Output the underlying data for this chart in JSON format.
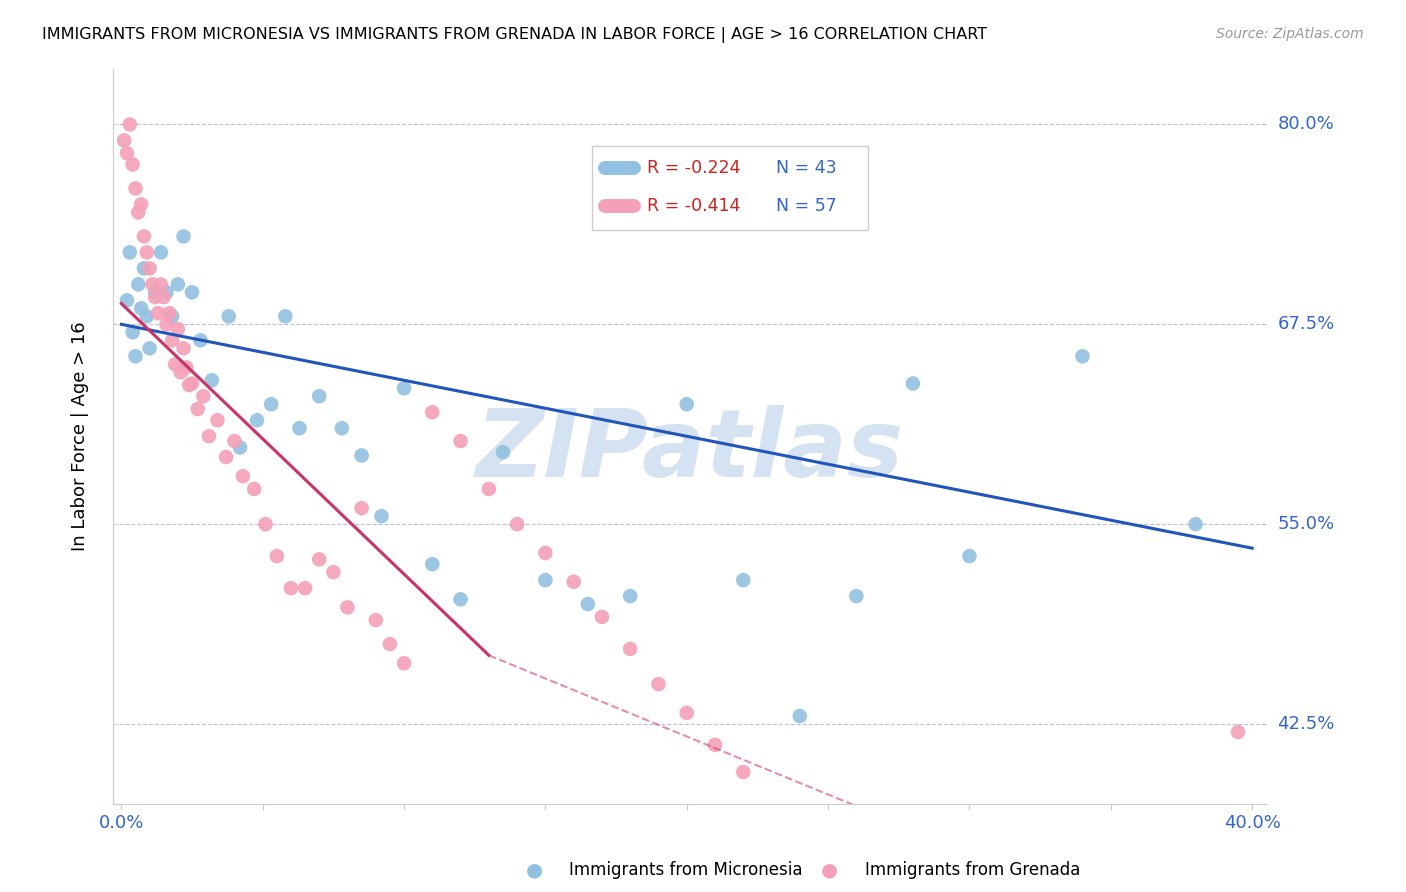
{
  "title": "IMMIGRANTS FROM MICRONESIA VS IMMIGRANTS FROM GRENADA IN LABOR FORCE | AGE > 16 CORRELATION CHART",
  "source": "Source: ZipAtlas.com",
  "ylabel": "In Labor Force | Age > 16",
  "xlim": [
    -0.003,
    0.405
  ],
  "ylim": [
    0.375,
    0.835
  ],
  "ytick_positions": [
    0.8,
    0.675,
    0.55,
    0.425
  ],
  "ytick_labels": [
    "80.0%",
    "67.5%",
    "55.0%",
    "42.5%"
  ],
  "xtick_positions": [
    0.0,
    0.05,
    0.1,
    0.15,
    0.2,
    0.25,
    0.3,
    0.35,
    0.4
  ],
  "xtick_labels": [
    "0.0%",
    "",
    "",
    "",
    "",
    "",
    "",
    "",
    "40.0%"
  ],
  "micronesia_color": "#92c0e0",
  "grenada_color": "#f4a0b8",
  "micronesia_line_color": "#2255bb",
  "grenada_line_solid_color": "#cc3366",
  "grenada_line_dashed_color": "#cc3366",
  "watermark": "ZIPatlas",
  "watermark_color": "#b8d0e8",
  "legend_R_micronesia": "R = -0.224",
  "legend_N_micronesia": "N = 43",
  "legend_R_grenada": "R = -0.414",
  "legend_N_grenada": "N = 57",
  "R_color": "#cc2222",
  "N_color": "#3366cc",
  "micronesia_x": [
    0.002,
    0.003,
    0.004,
    0.005,
    0.006,
    0.007,
    0.008,
    0.009,
    0.01,
    0.012,
    0.014,
    0.016,
    0.018,
    0.02,
    0.022,
    0.025,
    0.028,
    0.032,
    0.038,
    0.042,
    0.048,
    0.053,
    0.058,
    0.063,
    0.07,
    0.078,
    0.085,
    0.092,
    0.1,
    0.11,
    0.12,
    0.135,
    0.15,
    0.165,
    0.18,
    0.2,
    0.22,
    0.24,
    0.26,
    0.28,
    0.3,
    0.34,
    0.38
  ],
  "micronesia_y": [
    0.69,
    0.72,
    0.67,
    0.655,
    0.7,
    0.685,
    0.71,
    0.68,
    0.66,
    0.695,
    0.72,
    0.695,
    0.68,
    0.7,
    0.73,
    0.695,
    0.665,
    0.64,
    0.68,
    0.598,
    0.615,
    0.625,
    0.68,
    0.61,
    0.63,
    0.61,
    0.593,
    0.555,
    0.635,
    0.525,
    0.503,
    0.595,
    0.515,
    0.5,
    0.505,
    0.625,
    0.515,
    0.43,
    0.505,
    0.638,
    0.53,
    0.655,
    0.55
  ],
  "grenada_x": [
    0.001,
    0.002,
    0.003,
    0.004,
    0.005,
    0.006,
    0.007,
    0.008,
    0.009,
    0.01,
    0.011,
    0.012,
    0.013,
    0.014,
    0.015,
    0.016,
    0.017,
    0.018,
    0.019,
    0.02,
    0.021,
    0.022,
    0.023,
    0.024,
    0.025,
    0.027,
    0.029,
    0.031,
    0.034,
    0.037,
    0.04,
    0.043,
    0.047,
    0.051,
    0.055,
    0.06,
    0.065,
    0.07,
    0.075,
    0.08,
    0.085,
    0.09,
    0.095,
    0.1,
    0.11,
    0.12,
    0.13,
    0.14,
    0.15,
    0.16,
    0.17,
    0.18,
    0.19,
    0.2,
    0.21,
    0.22,
    0.395
  ],
  "grenada_y": [
    0.79,
    0.782,
    0.8,
    0.775,
    0.76,
    0.745,
    0.75,
    0.73,
    0.72,
    0.71,
    0.7,
    0.692,
    0.682,
    0.7,
    0.692,
    0.675,
    0.682,
    0.665,
    0.65,
    0.672,
    0.645,
    0.66,
    0.648,
    0.637,
    0.638,
    0.622,
    0.63,
    0.605,
    0.615,
    0.592,
    0.602,
    0.58,
    0.572,
    0.55,
    0.53,
    0.51,
    0.51,
    0.528,
    0.52,
    0.498,
    0.56,
    0.49,
    0.475,
    0.463,
    0.62,
    0.602,
    0.572,
    0.55,
    0.532,
    0.514,
    0.492,
    0.472,
    0.45,
    0.432,
    0.412,
    0.395,
    0.42
  ],
  "micronesia_trend": [
    0.0,
    0.4,
    0.675,
    0.535
  ],
  "grenada_trend_solid": [
    0.0,
    0.13,
    0.688,
    0.468
  ],
  "grenada_trend_dashed": [
    0.13,
    0.52,
    0.468,
    0.185
  ]
}
